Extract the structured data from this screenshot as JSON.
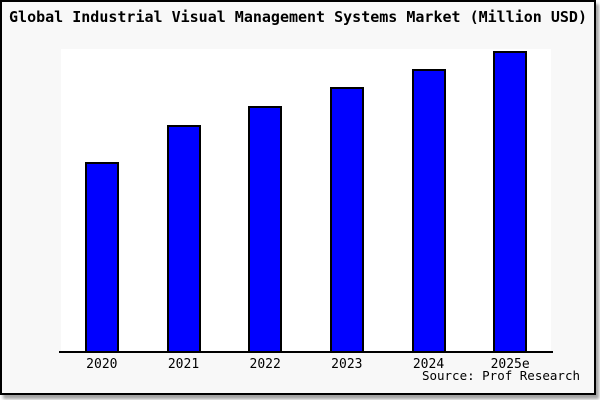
{
  "chart": {
    "title": "Global Industrial Visual Management Systems Market (Million USD)",
    "source": "Source: Prof Research"
  },
  "chart_data": {
    "type": "bar",
    "title": "Global Industrial Visual Management Systems Market (Million USD)",
    "categories": [
      "2020",
      "2021",
      "2022",
      "2023",
      "2024",
      "2025e"
    ],
    "values": [
      63.2,
      75.5,
      81.8,
      88.1,
      94.0,
      100
    ],
    "value_units": "relative index estimated from bar heights; no y-axis labels shown; 2025e bar = 100",
    "xlabel": "",
    "ylabel": "",
    "ylim": [
      0,
      100
    ],
    "grid": false,
    "legend": false,
    "y_axis_visible": false,
    "annotations": [
      "Source: Prof Research"
    ],
    "colors": {
      "bar_fill": "#0000ff",
      "bar_edge": "#000000",
      "figure_background": "#f8f8f8",
      "plot_background": "#ffffff",
      "axis_line": "#000000",
      "text": "#000000"
    }
  }
}
